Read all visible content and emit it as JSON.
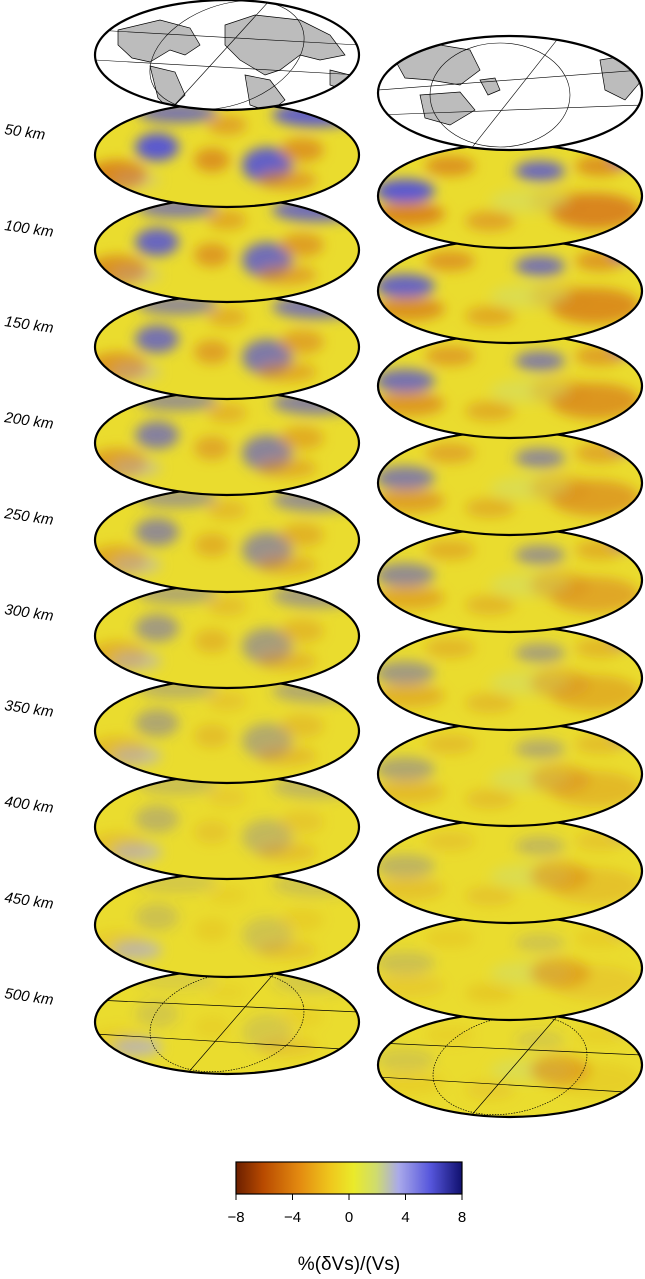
{
  "figure": {
    "depth_labels": [
      "50 km",
      "100 km",
      "150 km",
      "200 km",
      "250 km",
      "300 km",
      "350 km",
      "400 km",
      "450 km",
      "500 km"
    ],
    "colorbar": {
      "title": "%(δVs)/(Vs)",
      "ticks": [
        "−8",
        "−4",
        "0",
        "4",
        "8"
      ],
      "tick_values": [
        -8,
        -4,
        0,
        4,
        8
      ],
      "range": [
        -8,
        8
      ],
      "colors": [
        "#6b1f00",
        "#b84a00",
        "#e38a10",
        "#efc81d",
        "#eaea2a",
        "#cfdc6e",
        "#a9a9ea",
        "#5656dc",
        "#10106e"
      ]
    },
    "slice_colors": {
      "background": "#eadc2e",
      "fast": "#4a4ae0",
      "slow": "#d8811a",
      "land": "#bcbcbc",
      "ocean": "#ffffff",
      "grid": "#000000"
    }
  }
}
